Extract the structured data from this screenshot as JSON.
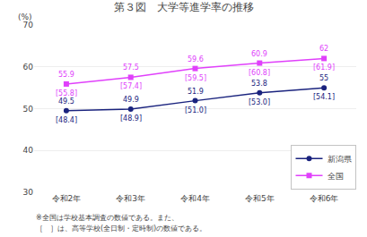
{
  "chart_data": {
    "type": "line",
    "title": "第３図　大学等進学率の推移",
    "ylabel": "(%)",
    "categories": [
      "令和2年",
      "令和3年",
      "令和4年",
      "令和5年",
      "令和6年"
    ],
    "series": [
      {
        "name": "新潟県",
        "color": "#1a237e",
        "marker": "circle",
        "values": [
          49.5,
          49.9,
          51.9,
          53.8,
          55.0
        ],
        "brackets": [
          48.4,
          48.9,
          51.0,
          53.0,
          54.1
        ],
        "bracket_labels": [
          "[48.4]",
          "[48.9]",
          "[51.0]",
          "[53.0]",
          "[54.1]"
        ]
      },
      {
        "name": "全国",
        "color": "#e040fb",
        "marker": "square",
        "values": [
          55.9,
          57.5,
          59.6,
          60.9,
          62.0
        ],
        "brackets": [
          55.8,
          57.4,
          59.5,
          60.8,
          61.9
        ],
        "bracket_labels": [
          "[55.8]",
          "[57.4]",
          "[59.5]",
          "[60.8]",
          "[61.9]"
        ]
      }
    ],
    "ylim": [
      30,
      70
    ],
    "yticks": [
      30,
      40,
      50,
      60,
      70
    ],
    "grid": true,
    "legend": "lower right",
    "data_labels": true,
    "footnotes": [
      "※全国は学校基本調査の数値である。また、",
      "［　］は、高等学校(全日制・定時制)の数値である。"
    ]
  }
}
